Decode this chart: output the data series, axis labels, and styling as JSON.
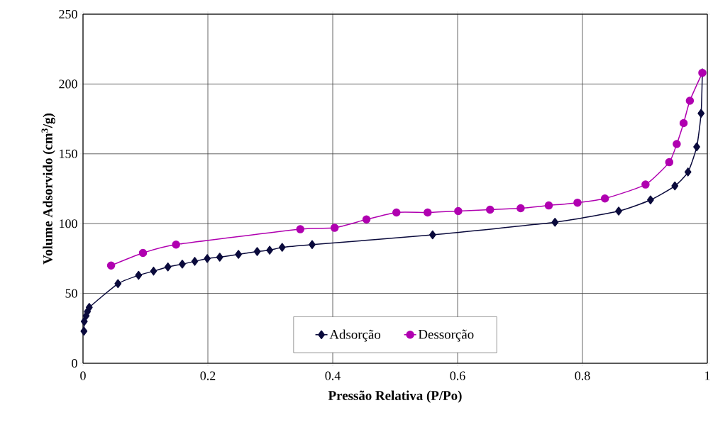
{
  "chart_data": {
    "type": "line",
    "xlabel": "Pressão Relativa (P/Po)",
    "ylabel": "Volume Adsorvido (cm$^{3}$/g)",
    "xlim": [
      0,
      1
    ],
    "ylim": [
      0,
      250
    ],
    "xticks": [
      0,
      0.2,
      0.4,
      0.6,
      0.8,
      1
    ],
    "yticks": [
      0,
      50,
      100,
      150,
      200,
      250
    ],
    "grid": true,
    "legend": "bottom",
    "series": [
      {
        "name": "Adsorção",
        "color": "#0a0a3c",
        "marker": "diamond",
        "x": [
          0.0015,
          0.002,
          0.005,
          0.007,
          0.01,
          0.056,
          0.089,
          0.113,
          0.136,
          0.159,
          0.179,
          0.199,
          0.219,
          0.249,
          0.279,
          0.299,
          0.319,
          0.367,
          0.56,
          0.756,
          0.858,
          0.909,
          0.948,
          0.969,
          0.983,
          0.99,
          0.992
        ],
        "values": [
          23,
          30,
          34,
          37,
          40,
          57,
          63,
          66,
          69,
          71,
          73,
          75,
          76,
          78,
          80,
          81,
          83,
          85,
          92,
          101,
          109,
          117,
          127,
          137,
          155,
          179,
          208
        ]
      },
      {
        "name": "Dessorção",
        "color": "#b000b0",
        "marker": "circle",
        "x": [
          0.045,
          0.096,
          0.149,
          0.348,
          0.403,
          0.454,
          0.502,
          0.552,
          0.601,
          0.652,
          0.701,
          0.746,
          0.792,
          0.836,
          0.901,
          0.939,
          0.951,
          0.962,
          0.972,
          0.992
        ],
        "values": [
          70,
          79,
          85,
          96,
          97,
          103,
          108,
          108,
          109,
          110,
          111,
          113,
          115,
          118,
          128,
          144,
          157,
          172,
          188,
          208
        ]
      }
    ]
  }
}
